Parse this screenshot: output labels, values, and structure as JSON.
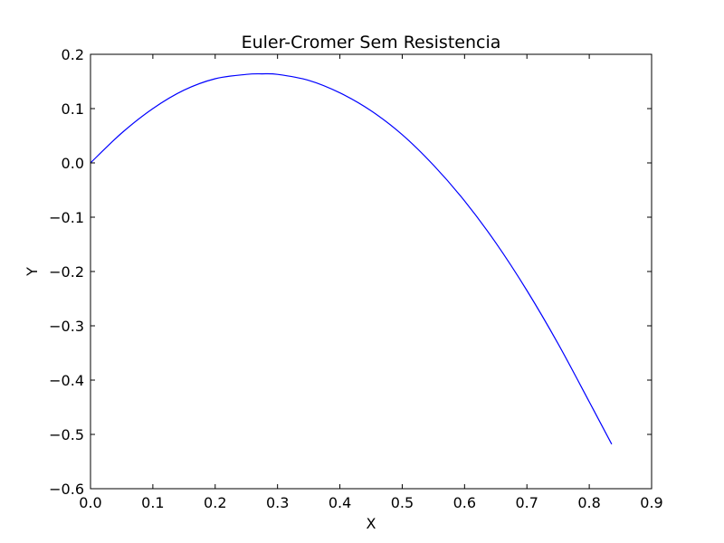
{
  "chart_data": {
    "type": "line",
    "title": "Euler-Cromer Sem Resistencia",
    "xlabel": "X",
    "ylabel": "Y",
    "xlim": [
      0.0,
      0.9
    ],
    "ylim": [
      -0.6,
      0.2
    ],
    "xticks": [
      "0.0",
      "0.1",
      "0.2",
      "0.3",
      "0.4",
      "0.5",
      "0.6",
      "0.7",
      "0.8",
      "0.9"
    ],
    "yticks": [
      "−0.6",
      "−0.5",
      "−0.4",
      "−0.3",
      "−0.2",
      "−0.1",
      "0.0",
      "0.1",
      "0.2"
    ],
    "grid": false,
    "series": [
      {
        "color": "#0000ff",
        "x": [
          0.0,
          0.05,
          0.1,
          0.15,
          0.2,
          0.25,
          0.275,
          0.3,
          0.35,
          0.4,
          0.45,
          0.5,
          0.55,
          0.6,
          0.65,
          0.7,
          0.75,
          0.8,
          0.836
        ],
        "y": [
          0.0,
          0.055,
          0.1,
          0.134,
          0.155,
          0.163,
          0.164,
          0.163,
          0.152,
          0.129,
          0.096,
          0.052,
          -0.004,
          -0.07,
          -0.147,
          -0.235,
          -0.333,
          -0.44,
          -0.518
        ]
      }
    ]
  }
}
